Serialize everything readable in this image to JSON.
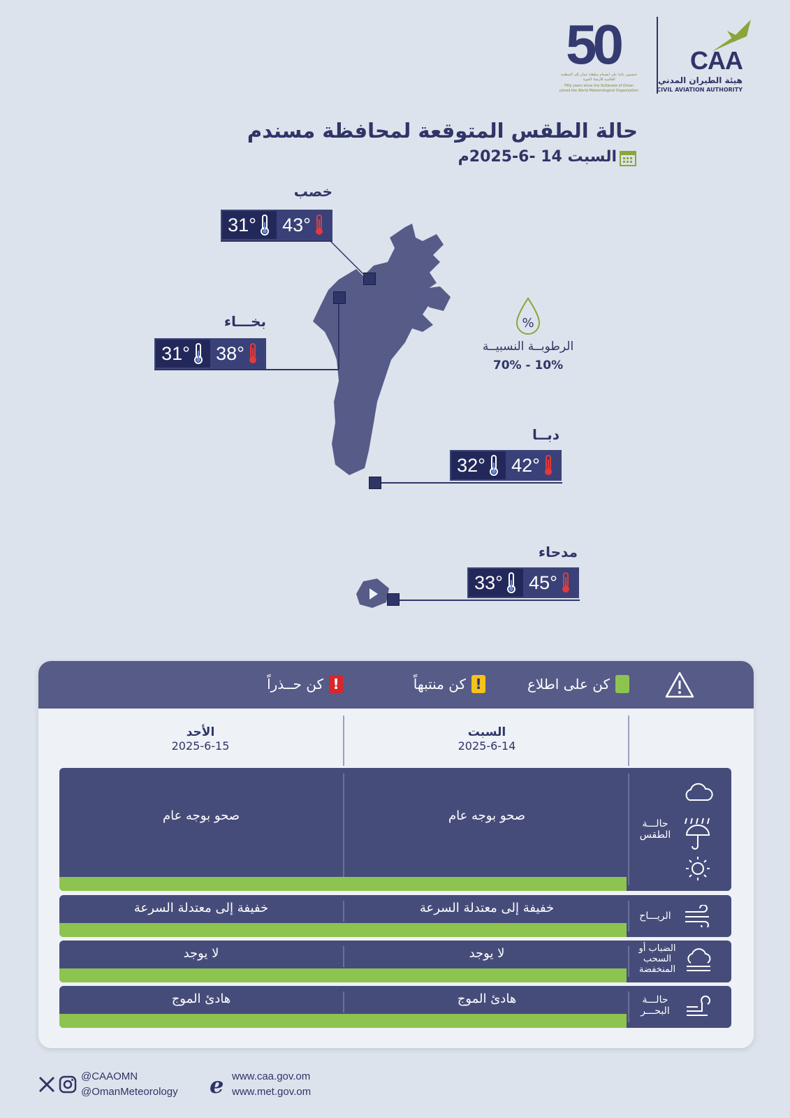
{
  "header": {
    "caa_letters": "CAA",
    "caa_arabic": "هيئة الطيران المدني",
    "caa_english": "CIVIL AVIATION AUTHORITY",
    "fifty_number": "50",
    "fifty_caption_ar": "خمسون عاما على انضمام سلطنة عمان إلى المنظمة العالمية للأرصاد الجوية",
    "fifty_caption_en": "Fifty years since the Sultanate of Oman joined the World Meteorological Organization"
  },
  "title": "حالة الطقس المتوقعة لمحافظة مسندم",
  "date_line": "السبت 14 -6-2025م",
  "map": {
    "cities": [
      {
        "name": "خصب",
        "max": "43°",
        "min": "31°"
      },
      {
        "name": "بخـــاء",
        "max": "38°",
        "min": "31°"
      },
      {
        "name": "دبــا",
        "max": "42°",
        "min": "32°"
      },
      {
        "name": "مدحاء",
        "max": "45°",
        "min": "33°"
      }
    ],
    "humidity": {
      "icon": "percent-drop-icon",
      "label": "الرطوبــة النسبيــة",
      "range": "70% - 10%"
    }
  },
  "legend": {
    "warning_icon": "warning-triangle-icon",
    "items": [
      {
        "label": "كن على اطلاع",
        "color": "#8dc44f"
      },
      {
        "label": "كن منتبهاً",
        "color": "#f3c21b",
        "mark": "!"
      },
      {
        "label": "كن حــذراً",
        "color": "#d8262c",
        "mark": "!"
      }
    ]
  },
  "days": [
    {
      "name": "السبت",
      "date": "2025-6-14"
    },
    {
      "name": "الأحد",
      "date": "2025-6-15"
    }
  ],
  "rows": [
    {
      "label": "حالـــة الطقس",
      "icon": "weather-icons",
      "sat": "صحو بوجه عام",
      "sun": "صحو بوجه عام"
    },
    {
      "label": "الريـــاح",
      "icon": "wind-icon",
      "sat": "خفيفة إلى معتدلة السرعة",
      "sun": "خفيفة إلى معتدلة السرعة"
    },
    {
      "label": "الضباب أو السحب المنخفضة",
      "icon": "fog-icon",
      "sat": "لا يوجد",
      "sun": "لا يوجد"
    },
    {
      "label": "حالـــة البحـــر",
      "icon": "sea-wave-icon",
      "sat": "هادئ الموج",
      "sun": "هادئ الموج"
    }
  ],
  "footer": {
    "handle1": "@CAAOMN",
    "handle2": "@OmanMeteorology",
    "site1": "www.caa.gov.om",
    "site2": "www.met.gov.om"
  },
  "colors": {
    "navy": "#2f3566",
    "green": "#8dc44f",
    "yellow": "#f3c21b",
    "red": "#d8262c",
    "background": "#dde3ec"
  }
}
